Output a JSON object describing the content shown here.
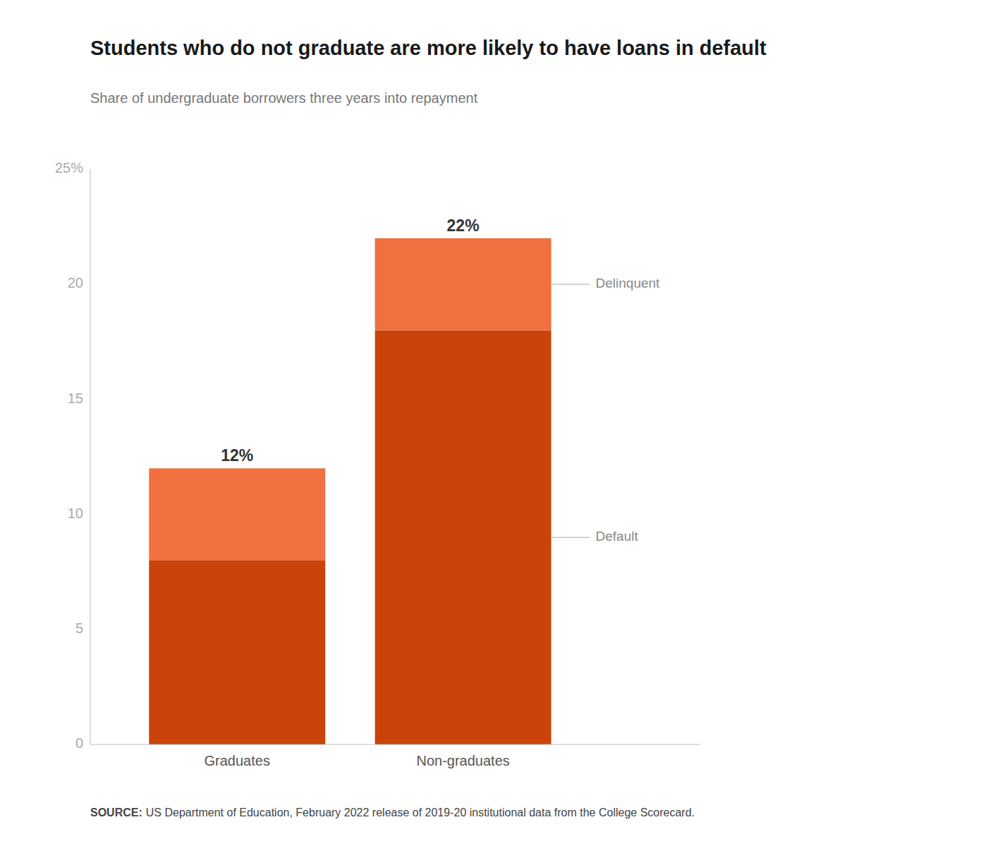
{
  "chart_data": {
    "type": "bar",
    "stacked": true,
    "grid": false,
    "title": "Students who do not graduate are more likely to have loans in default",
    "subtitle": "Share of undergraduate borrowers three years into repayment",
    "categories": [
      "Graduates",
      "Non-graduates"
    ],
    "series": [
      {
        "name": "Default",
        "color": "#C9430A",
        "values": [
          8,
          18
        ]
      },
      {
        "name": "Delinquent",
        "color": "#F07040",
        "values": [
          4,
          4
        ]
      }
    ],
    "totals": [
      12,
      22
    ],
    "total_labels": [
      "12%",
      "22%"
    ],
    "ylim": [
      0,
      25
    ],
    "yticks": [
      0,
      5,
      10,
      15,
      20,
      {
        "value": 25,
        "label": "25%"
      }
    ],
    "source_label": "SOURCE:",
    "source": "US Department of Education, February 2022 release of 2019-20 institutional data from the College Scorecard."
  }
}
